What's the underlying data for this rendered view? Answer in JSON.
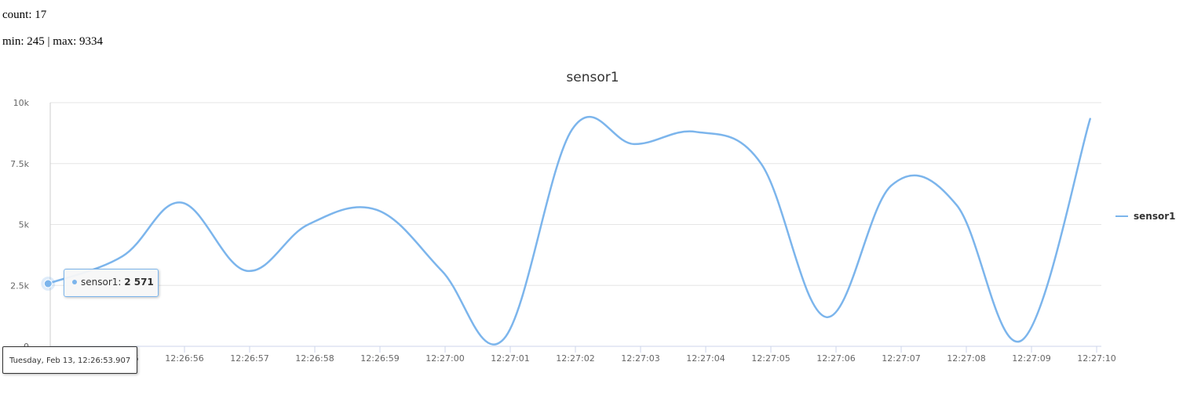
{
  "stats": {
    "count_label": "count:",
    "count_value": "17",
    "min_label": "min:",
    "min_value": "245",
    "separator": "|",
    "max_label": "max:",
    "max_value": "9334"
  },
  "tooltip": {
    "series_label": "sensor1:",
    "value": "2 571"
  },
  "crosshair_label": "Tuesday, Feb 13, 12:26:53.907",
  "colors": {
    "series": "#7cb5ec",
    "grid": "#e6e6e6",
    "axis_text": "#666666",
    "title": "#333333"
  },
  "chart_data": {
    "type": "line",
    "title": "sensor1",
    "xlabel": "",
    "ylabel": "",
    "x_range_seconds": [
      "12:26:53.907",
      "12:27:10.9"
    ],
    "ylim": [
      0,
      10000
    ],
    "y_ticks": [
      0,
      2500,
      5000,
      7500,
      10000
    ],
    "y_tick_labels": [
      "0",
      "2.5k",
      "5k",
      "7.5k",
      "10k"
    ],
    "x_ticks": [
      "12:26:55",
      "12:26:56",
      "12:26:57",
      "12:26:58",
      "12:26:59",
      "12:27:00",
      "12:27:01",
      "12:27:02",
      "12:27:03",
      "12:27:04",
      "12:27:05",
      "12:27:06",
      "12:27:07",
      "12:27:08",
      "12:27:09",
      "12:27:10"
    ],
    "grid": true,
    "legend_position": "right",
    "series": [
      {
        "name": "sensor1",
        "x": [
          "12:26:53.907",
          "12:26:55.05",
          "12:26:55.95",
          "12:26:56.95",
          "12:26:57.9",
          "12:26:58.95",
          "12:26:59.95",
          "12:27:00.9",
          "12:27:01.95",
          "12:27:02.9",
          "12:27:03.85",
          "12:27:04.85",
          "12:27:05.85",
          "12:27:06.85",
          "12:27:07.85",
          "12:27:08.85",
          "12:27:09.9"
        ],
        "values": [
          2571,
          3700,
          5900,
          3100,
          5000,
          5600,
          3100,
          300,
          8900,
          8300,
          8800,
          7500,
          1200,
          6600,
          5800,
          245,
          9334
        ]
      }
    ]
  }
}
